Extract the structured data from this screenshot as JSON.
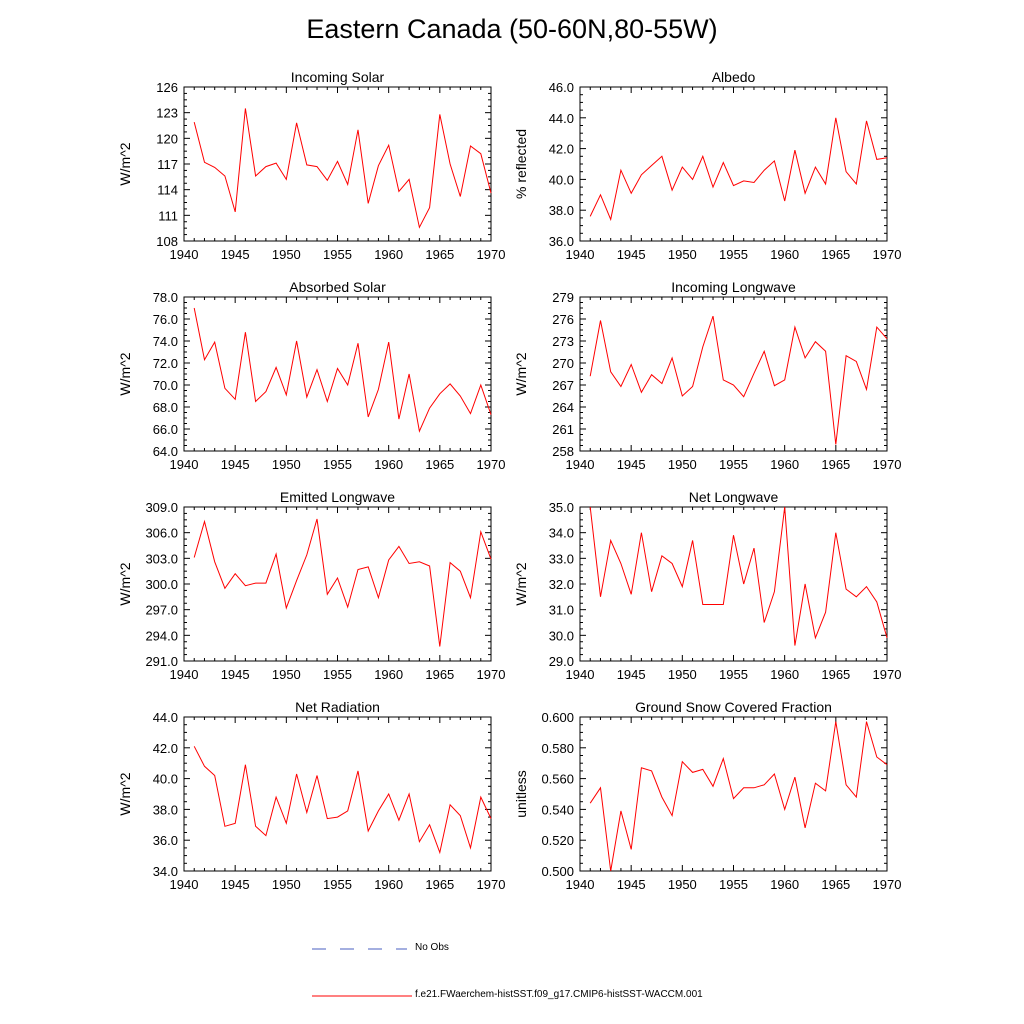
{
  "title": "Eastern Canada (50-60N,80-55W)",
  "colors": {
    "model": "#ff0000",
    "obs": "#4a5fc1",
    "axis": "#000000"
  },
  "legend": [
    {
      "label": "No Obs",
      "style": "dashed",
      "color": "#4a5fc1"
    },
    {
      "label": "f.e21.FWaerchem-histSST.f09_g17.CMIP6-histSST-WACCM.001",
      "style": "solid",
      "color": "#ff0000"
    }
  ],
  "chart_data": [
    {
      "type": "line",
      "title": "Incoming Solar",
      "ylabel": "W/m^2",
      "xlim": [
        1940,
        1970
      ],
      "ylim": [
        108,
        126
      ],
      "xticks": [
        "1940",
        "1945",
        "1950",
        "1955",
        "1960",
        "1965",
        "1970"
      ],
      "yticks": [
        "108",
        "111",
        "114",
        "117",
        "120",
        "123",
        "126"
      ],
      "x": [
        1941,
        1942,
        1943,
        1944,
        1945,
        1946,
        1947,
        1948,
        1949,
        1950,
        1951,
        1952,
        1953,
        1954,
        1955,
        1956,
        1957,
        1958,
        1959,
        1960,
        1961,
        1962,
        1963,
        1964,
        1965,
        1966,
        1967,
        1968,
        1969,
        1970
      ],
      "series": [
        {
          "values": [
            121.9,
            117.2,
            116.6,
            115.6,
            111.4,
            123.5,
            115.6,
            116.7,
            117.1,
            115.2,
            121.8,
            116.9,
            116.7,
            115.1,
            117.3,
            114.6,
            121.0,
            112.4,
            116.8,
            119.2,
            113.8,
            115.2,
            109.6,
            111.9,
            122.8,
            117.0,
            113.2,
            119.1,
            118.2,
            113.6
          ]
        }
      ]
    },
    {
      "type": "line",
      "title": "Albedo",
      "ylabel": "% reflected",
      "xlim": [
        1940,
        1970
      ],
      "ylim": [
        36.0,
        46.0
      ],
      "xticks": [
        "1940",
        "1945",
        "1950",
        "1955",
        "1960",
        "1965",
        "1970"
      ],
      "yticks": [
        "36.0",
        "38.0",
        "40.0",
        "42.0",
        "44.0",
        "46.0"
      ],
      "x": [
        1941,
        1942,
        1943,
        1944,
        1945,
        1946,
        1947,
        1948,
        1949,
        1950,
        1951,
        1952,
        1953,
        1954,
        1955,
        1956,
        1957,
        1958,
        1959,
        1960,
        1961,
        1962,
        1963,
        1964,
        1965,
        1966,
        1967,
        1968,
        1969,
        1970
      ],
      "series": [
        {
          "values": [
            37.6,
            39.0,
            37.4,
            40.6,
            39.1,
            40.3,
            40.9,
            41.5,
            39.3,
            40.8,
            40.0,
            41.5,
            39.5,
            41.1,
            39.6,
            39.9,
            39.8,
            40.6,
            41.2,
            38.6,
            41.9,
            39.1,
            40.8,
            39.7,
            44.0,
            40.5,
            39.7,
            43.8,
            41.3,
            41.4
          ]
        }
      ]
    },
    {
      "type": "line",
      "title": "Absorbed Solar",
      "ylabel": "W/m^2",
      "xlim": [
        1940,
        1970
      ],
      "ylim": [
        64.0,
        78.0
      ],
      "xticks": [
        "1940",
        "1945",
        "1950",
        "1955",
        "1960",
        "1965",
        "1970"
      ],
      "yticks": [
        "64.0",
        "66.0",
        "68.0",
        "70.0",
        "72.0",
        "74.0",
        "76.0",
        "78.0"
      ],
      "x": [
        1941,
        1942,
        1943,
        1944,
        1945,
        1946,
        1947,
        1948,
        1949,
        1950,
        1951,
        1952,
        1953,
        1954,
        1955,
        1956,
        1957,
        1958,
        1959,
        1960,
        1961,
        1962,
        1963,
        1964,
        1965,
        1966,
        1967,
        1968,
        1969,
        1970
      ],
      "series": [
        {
          "values": [
            77.0,
            72.3,
            73.9,
            69.7,
            68.7,
            74.8,
            68.5,
            69.4,
            71.6,
            69.1,
            74.0,
            68.9,
            71.4,
            68.5,
            71.5,
            70.0,
            73.8,
            67.1,
            69.6,
            73.9,
            66.9,
            71.0,
            65.8,
            67.9,
            69.2,
            70.1,
            69.0,
            67.4,
            70.0,
            67.3
          ]
        }
      ]
    },
    {
      "type": "line",
      "title": "Incoming Longwave",
      "ylabel": "W/m^2",
      "xlim": [
        1940,
        1970
      ],
      "ylim": [
        258,
        279
      ],
      "xticks": [
        "1940",
        "1945",
        "1950",
        "1955",
        "1960",
        "1965",
        "1970"
      ],
      "yticks": [
        "258",
        "261",
        "264",
        "267",
        "270",
        "273",
        "276",
        "279"
      ],
      "x": [
        1941,
        1942,
        1943,
        1944,
        1945,
        1946,
        1947,
        1948,
        1949,
        1950,
        1951,
        1952,
        1953,
        1954,
        1955,
        1956,
        1957,
        1958,
        1959,
        1960,
        1961,
        1962,
        1963,
        1964,
        1965,
        1966,
        1967,
        1968,
        1969,
        1970
      ],
      "series": [
        {
          "values": [
            268.2,
            275.8,
            268.8,
            266.8,
            269.8,
            266.0,
            268.4,
            267.2,
            270.7,
            265.5,
            266.8,
            272.2,
            276.4,
            267.7,
            267.0,
            265.4,
            268.6,
            271.6,
            266.9,
            267.7,
            274.9,
            270.7,
            272.9,
            271.6,
            258.9,
            271.0,
            270.2,
            266.4,
            274.9,
            273.3
          ]
        }
      ]
    },
    {
      "type": "line",
      "title": "Emitted Longwave",
      "ylabel": "W/m^2",
      "xlim": [
        1940,
        1970
      ],
      "ylim": [
        291.0,
        309.0
      ],
      "xticks": [
        "1940",
        "1945",
        "1950",
        "1955",
        "1960",
        "1965",
        "1970"
      ],
      "yticks": [
        "291.0",
        "294.0",
        "297.0",
        "300.0",
        "303.0",
        "306.0",
        "309.0"
      ],
      "x": [
        1941,
        1942,
        1943,
        1944,
        1945,
        1946,
        1947,
        1948,
        1949,
        1950,
        1951,
        1952,
        1953,
        1954,
        1955,
        1956,
        1957,
        1958,
        1959,
        1960,
        1961,
        1962,
        1963,
        1964,
        1965,
        1966,
        1967,
        1968,
        1969,
        1970
      ],
      "series": [
        {
          "values": [
            303.1,
            307.3,
            302.6,
            299.5,
            301.2,
            299.8,
            300.1,
            300.1,
            303.5,
            297.2,
            300.4,
            303.4,
            307.6,
            298.8,
            300.7,
            297.3,
            301.7,
            302.0,
            298.4,
            302.8,
            304.4,
            302.4,
            302.6,
            302.1,
            292.7,
            302.5,
            301.5,
            298.4,
            306.1,
            302.9
          ]
        }
      ]
    },
    {
      "type": "line",
      "title": "Net Longwave",
      "ylabel": "W/m^2",
      "xlim": [
        1940,
        1970
      ],
      "ylim": [
        29.0,
        35.0
      ],
      "xticks": [
        "1940",
        "1945",
        "1950",
        "1955",
        "1960",
        "1965",
        "1970"
      ],
      "yticks": [
        "29.0",
        "30.0",
        "31.0",
        "32.0",
        "33.0",
        "34.0",
        "35.0"
      ],
      "x": [
        1941,
        1942,
        1943,
        1944,
        1945,
        1946,
        1947,
        1948,
        1949,
        1950,
        1951,
        1952,
        1953,
        1954,
        1955,
        1956,
        1957,
        1958,
        1959,
        1960,
        1961,
        1962,
        1963,
        1964,
        1965,
        1966,
        1967,
        1968,
        1969,
        1970
      ],
      "series": [
        {
          "values": [
            35.0,
            31.5,
            33.7,
            32.8,
            31.6,
            34.0,
            31.7,
            33.1,
            32.8,
            31.9,
            33.7,
            31.2,
            31.2,
            31.2,
            33.9,
            32.0,
            33.4,
            30.5,
            31.7,
            35.0,
            29.6,
            32.0,
            29.9,
            30.9,
            34.0,
            31.8,
            31.5,
            31.9,
            31.3,
            29.9
          ]
        }
      ]
    },
    {
      "type": "line",
      "title": "Net Radiation",
      "ylabel": "W/m^2",
      "xlim": [
        1940,
        1970
      ],
      "ylim": [
        34.0,
        44.0
      ],
      "xticks": [
        "1940",
        "1945",
        "1950",
        "1955",
        "1960",
        "1965",
        "1970"
      ],
      "yticks": [
        "34.0",
        "36.0",
        "38.0",
        "40.0",
        "42.0",
        "44.0"
      ],
      "x": [
        1941,
        1942,
        1943,
        1944,
        1945,
        1946,
        1947,
        1948,
        1949,
        1950,
        1951,
        1952,
        1953,
        1954,
        1955,
        1956,
        1957,
        1958,
        1959,
        1960,
        1961,
        1962,
        1963,
        1964,
        1965,
        1966,
        1967,
        1968,
        1969,
        1970
      ],
      "series": [
        {
          "values": [
            42.1,
            40.8,
            40.2,
            36.9,
            37.1,
            40.9,
            36.9,
            36.3,
            38.8,
            37.1,
            40.3,
            37.8,
            40.2,
            37.4,
            37.5,
            37.9,
            40.5,
            36.6,
            37.9,
            39.0,
            37.3,
            39.0,
            35.9,
            37.0,
            35.2,
            38.3,
            37.6,
            35.5,
            38.8,
            37.4
          ]
        }
      ]
    },
    {
      "type": "line",
      "title": "Ground Snow Covered Fraction",
      "ylabel": "unitless",
      "xlim": [
        1940,
        1970
      ],
      "ylim": [
        0.5,
        0.6
      ],
      "xticks": [
        "1940",
        "1945",
        "1950",
        "1955",
        "1960",
        "1965",
        "1970"
      ],
      "yticks": [
        "0.500",
        "0.520",
        "0.540",
        "0.560",
        "0.580",
        "0.600"
      ],
      "x": [
        1941,
        1942,
        1943,
        1944,
        1945,
        1946,
        1947,
        1948,
        1949,
        1950,
        1951,
        1952,
        1953,
        1954,
        1955,
        1956,
        1957,
        1958,
        1959,
        1960,
        1961,
        1962,
        1963,
        1964,
        1965,
        1966,
        1967,
        1968,
        1969,
        1970
      ],
      "series": [
        {
          "values": [
            0.544,
            0.554,
            0.5,
            0.539,
            0.514,
            0.567,
            0.565,
            0.548,
            0.536,
            0.571,
            0.564,
            0.566,
            0.555,
            0.573,
            0.547,
            0.554,
            0.554,
            0.556,
            0.563,
            0.54,
            0.561,
            0.528,
            0.557,
            0.552,
            0.597,
            0.556,
            0.548,
            0.597,
            0.574,
            0.569
          ]
        }
      ]
    }
  ]
}
